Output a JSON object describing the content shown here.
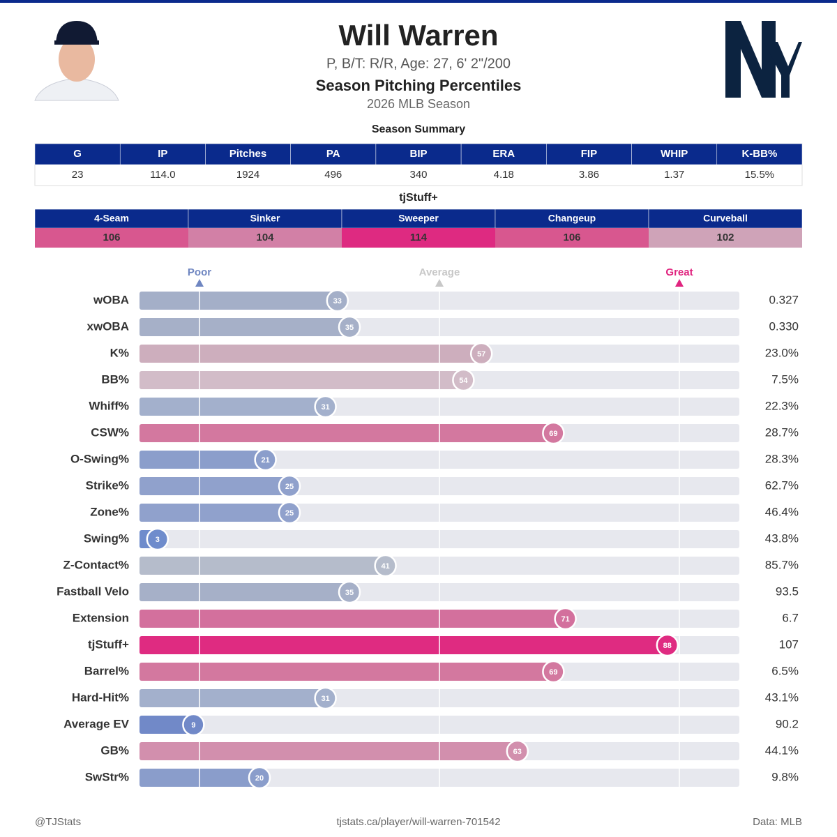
{
  "header": {
    "name": "Will Warren",
    "info": "P, B/T: R/R, Age: 27, 6' 2\"/200",
    "title": "Season Pitching Percentiles",
    "subtitle": "2026 MLB Season"
  },
  "summary": {
    "title": "Season Summary",
    "columns": [
      "G",
      "IP",
      "Pitches",
      "PA",
      "BIP",
      "ERA",
      "FIP",
      "WHIP",
      "K-BB%"
    ],
    "values": [
      "23",
      "114.0",
      "1924",
      "496",
      "340",
      "4.18",
      "3.86",
      "1.37",
      "15.5%"
    ]
  },
  "stuff": {
    "title": "tjStuff+",
    "columns": [
      "4-Seam",
      "Sinker",
      "Sweeper",
      "Changeup",
      "Curveball"
    ],
    "values": [
      106,
      104,
      114,
      106,
      102
    ],
    "colors": [
      "#d8578f",
      "#d280a6",
      "#de2a81",
      "#d8578f",
      "#cfa3b8"
    ]
  },
  "chart_data": {
    "type": "bar",
    "orientation": "horizontal",
    "categories": [
      "wOBA",
      "xwOBA",
      "K%",
      "BB%",
      "Whiff%",
      "CSW%",
      "O-Swing%",
      "Strike%",
      "Zone%",
      "Swing%",
      "Z-Contact%",
      "Fastball Velo",
      "Extension",
      "tjStuff+",
      "Barrel%",
      "Hard-Hit%",
      "Average EV",
      "GB%",
      "SwStr%"
    ],
    "values": [
      33,
      35,
      57,
      54,
      31,
      69,
      21,
      25,
      25,
      3,
      41,
      35,
      71,
      88,
      69,
      31,
      9,
      63,
      20
    ],
    "colors": [
      "#a4afc8",
      "#a6b0c8",
      "#cdaebd",
      "#d2bcc8",
      "#a3b0cc",
      "#d3789f",
      "#8b9ecb",
      "#90a1cc",
      "#90a1cc",
      "#6f8ccc",
      "#b5bccb",
      "#a6b0c8",
      "#d3709d",
      "#df2b81",
      "#d3789f",
      "#a3b0cc",
      "#7189c8",
      "#d28fad",
      "#8a9dcb"
    ],
    "stats": [
      "0.327",
      "0.330",
      "23.0%",
      "7.5%",
      "22.3%",
      "28.7%",
      "28.3%",
      "62.7%",
      "46.4%",
      "43.8%",
      "85.7%",
      "93.5",
      "6.7",
      "107",
      "6.5%",
      "43.1%",
      "90.2",
      "44.1%",
      "9.8%"
    ],
    "xlim": [
      0,
      100
    ],
    "xticks": [
      {
        "value": 10,
        "label": "Poor"
      },
      {
        "value": 50,
        "label": "Average"
      },
      {
        "value": 90,
        "label": "Great"
      }
    ],
    "tick_colors": [
      "#6f86c1",
      "#c8c8c8",
      "#e0247f"
    ],
    "grid": true
  },
  "footer": {
    "left": "@TJStats",
    "center": "tjstats.ca/player/will-warren-701542",
    "right": "Data: MLB"
  }
}
